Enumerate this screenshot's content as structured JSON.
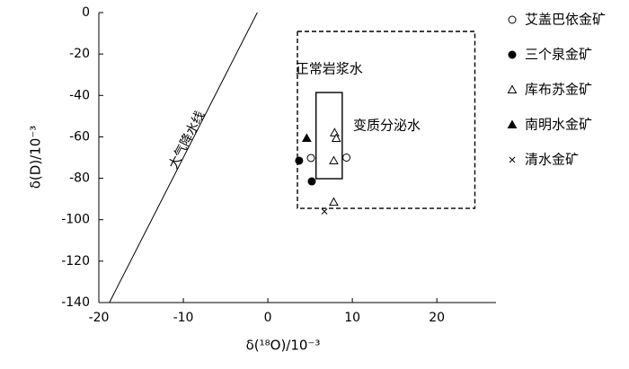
{
  "chart_data": {
    "type": "scatter",
    "x_label": "δ(¹⁸O)/10⁻³",
    "y_label": "δ(D)/10⁻³",
    "xlim": [
      -20,
      27
    ],
    "ylim": [
      -140,
      0
    ],
    "xticks": [
      -20,
      -10,
      0,
      10,
      20
    ],
    "yticks": [
      -140,
      -120,
      -100,
      -80,
      -60,
      -40,
      -20,
      0
    ],
    "line": {
      "label": "大气降水线",
      "x": [
        -18.75,
        -1.25
      ],
      "y": [
        -140,
        0
      ]
    },
    "regions": [
      {
        "label": "变质分泌水",
        "x": [
          3.5,
          24.5
        ],
        "y": [
          -94.5,
          -9.1
        ],
        "style": "dashed"
      },
      {
        "label": "正常岩浆水",
        "x": [
          5.7,
          8.8
        ],
        "y": [
          -80.2,
          -38.6
        ],
        "style": "solid"
      }
    ],
    "series": [
      {
        "name": "艾盖巴依金矿",
        "marker": "open-circle",
        "x": [
          5.1,
          9.3
        ],
        "values": [
          -70.2,
          -70
        ]
      },
      {
        "name": "三个泉金矿",
        "marker": "filled-circle",
        "x": [
          3.7,
          5.2
        ],
        "values": [
          -71.5,
          -81.5
        ]
      },
      {
        "name": "库布苏金矿",
        "marker": "open-triangle",
        "x": [
          7.9,
          8.1,
          7.8,
          7.8
        ],
        "values": [
          -58,
          -60.7,
          -71.5,
          -91.5
        ]
      },
      {
        "name": "南明水金矿",
        "marker": "filled-triangle",
        "x": [
          4.6
        ],
        "values": [
          -60.7
        ]
      },
      {
        "name": "清水金矿",
        "marker": "cross",
        "x": [
          6.7
        ],
        "values": [
          -96
        ]
      }
    ]
  }
}
